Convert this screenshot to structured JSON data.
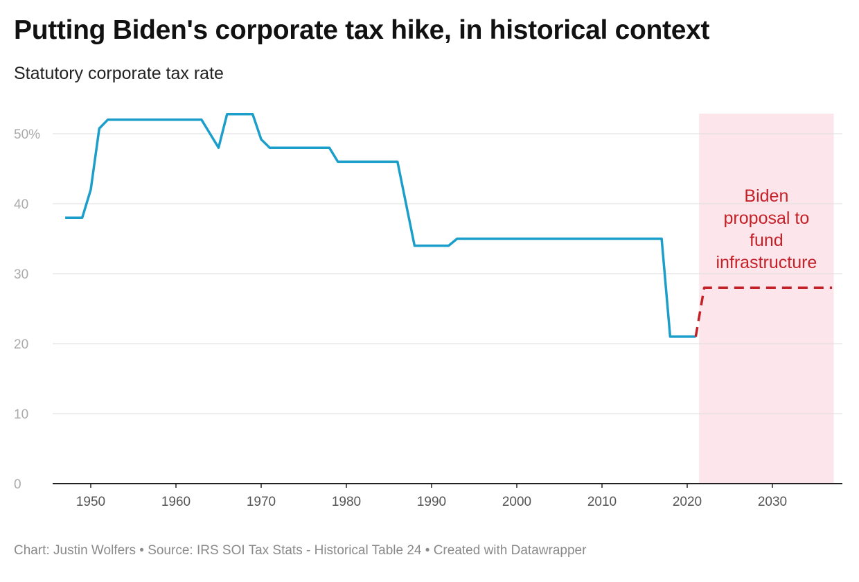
{
  "header": {
    "title": "Putting Biden's corporate tax hike, in historical context",
    "subtitle": "Statutory corporate tax rate"
  },
  "footer": {
    "credit": "Chart: Justin Wolfers • Source: IRS SOI Tax Stats - Historical Table 24 • Created with Datawrapper"
  },
  "colors": {
    "historical_line": "#1b9ec9",
    "proposal_line": "#c42127",
    "proposal_band": "#fce6ec",
    "grid": "#dddddd",
    "axis": "#222222"
  },
  "chart_data": {
    "type": "line",
    "title": "Putting Biden's corporate tax hike, in historical context",
    "subtitle": "Statutory corporate tax rate",
    "xlabel": "",
    "ylabel": "",
    "xlim": [
      1945,
      2038
    ],
    "ylim": [
      0,
      52.5
    ],
    "x_ticks": [
      1950,
      1960,
      1970,
      1980,
      1990,
      2000,
      2010,
      2020,
      2030
    ],
    "y_ticks": [
      0,
      10,
      20,
      30,
      40,
      50
    ],
    "y_tick_labels": [
      "0",
      "10",
      "20",
      "30",
      "40",
      "50%"
    ],
    "grid": true,
    "series": [
      {
        "style": "solid",
        "color": "#1b9ec9",
        "points": [
          [
            1947,
            38
          ],
          [
            1949,
            38
          ],
          [
            1950,
            42
          ],
          [
            1951,
            50.75
          ],
          [
            1952,
            52
          ],
          [
            1963,
            52
          ],
          [
            1964,
            50
          ],
          [
            1965,
            48
          ],
          [
            1966,
            52.8
          ],
          [
            1969,
            52.8
          ],
          [
            1970,
            49.2
          ],
          [
            1971,
            48
          ],
          [
            1978,
            48
          ],
          [
            1979,
            46
          ],
          [
            1986,
            46
          ],
          [
            1987,
            40
          ],
          [
            1988,
            34
          ],
          [
            1992,
            34
          ],
          [
            1993,
            35
          ],
          [
            2017,
            35
          ],
          [
            2018,
            21
          ],
          [
            2021,
            21
          ]
        ]
      },
      {
        "style": "dashed",
        "color": "#c42127",
        "points": [
          [
            2021,
            21
          ],
          [
            2022,
            28
          ],
          [
            2037,
            28
          ]
        ]
      }
    ],
    "highlight_band": {
      "x_start": 2021.4,
      "x_end": 2037.2,
      "label_lines": [
        "Biden",
        "proposal to",
        "fund",
        "infrastructure"
      ]
    }
  }
}
